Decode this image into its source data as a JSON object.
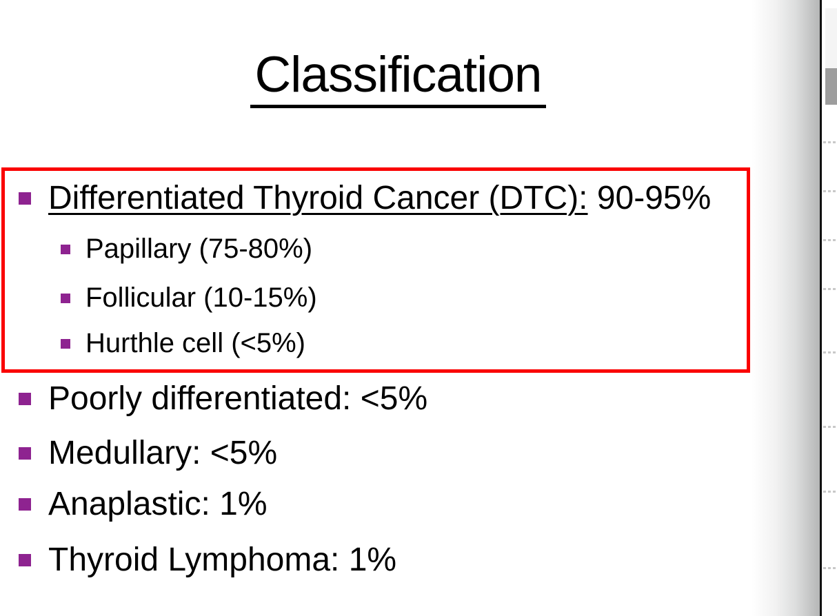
{
  "slide": {
    "title": "Classification",
    "bullets": [
      {
        "level": 1,
        "text_underlined": "Differentiated Thyroid Cancer (DTC):",
        "text_rest": " 90-95%",
        "inside_red_box": true
      },
      {
        "level": 2,
        "text": "Papillary (75-80%)",
        "inside_red_box": true
      },
      {
        "level": 2,
        "text": "Follicular (10-15%)",
        "inside_red_box": true
      },
      {
        "level": 2,
        "text": "Hurthle cell (<5%)",
        "inside_red_box": true
      },
      {
        "level": 1,
        "text": "Poorly differentiated: <5%",
        "inside_red_box": false
      },
      {
        "level": 1,
        "text": "Medullary: <5%",
        "inside_red_box": false
      },
      {
        "level": 1,
        "text": "Anaplastic: 1%",
        "inside_red_box": false
      },
      {
        "level": 1,
        "text": "Thyroid Lymphoma: 1%",
        "inside_red_box": false
      }
    ],
    "annotation": {
      "red_box_highlights": "Differentiated Thyroid Cancer (DTC) group with its three subtypes"
    },
    "colors": {
      "text": "#000000",
      "bullet_marker": "#8E2390",
      "red_box_border": "#FA0000",
      "page_edge_shadow_end": "#B5B6B6",
      "divider_line": "#101010",
      "adjacent_light_block": "#F4F4F4",
      "adjacent_gray_block": "#9D9D9D",
      "adjacent_dotted_line": "#C9C9C9"
    }
  }
}
